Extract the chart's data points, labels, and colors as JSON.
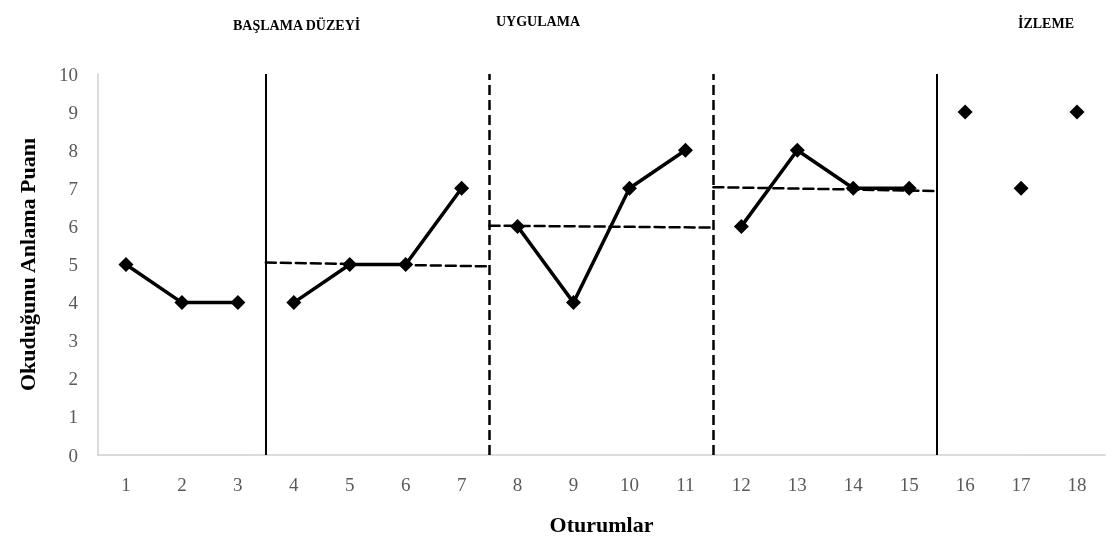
{
  "chart_data": {
    "type": "line",
    "xlabel": "Oturumlar",
    "ylabel": "Okuduğunu Anlama Puanı",
    "annotations": [
      "BAŞLAMA DÜZEYİ",
      "UYGULAMA",
      "İZLEME"
    ],
    "xlim": [
      0.5,
      18.5
    ],
    "xticks": [
      1,
      2,
      3,
      4,
      5,
      6,
      7,
      8,
      9,
      10,
      11,
      12,
      13,
      14,
      15,
      16,
      17,
      18
    ],
    "ylim": [
      0,
      10
    ],
    "yticks": [
      0,
      1,
      2,
      3,
      4,
      5,
      6,
      7,
      8,
      9,
      10
    ],
    "grid": false,
    "marker": "diamond",
    "line_style": "solid",
    "series": [
      {
        "color": "#000000",
        "x": [
          1,
          2,
          3
        ],
        "values": [
          5,
          4,
          4
        ]
      },
      {
        "color": "#000000",
        "x": [
          4,
          5,
          6,
          7
        ],
        "values": [
          4,
          5,
          5,
          7
        ]
      },
      {
        "color": "#000000",
        "x": [
          8,
          9,
          10,
          11
        ],
        "values": [
          6,
          4,
          7,
          8
        ]
      },
      {
        "color": "#000000",
        "x": [
          12,
          13,
          14,
          15
        ],
        "values": [
          6,
          8,
          7,
          7
        ]
      },
      {
        "type": "scatter",
        "color": "#000000",
        "x": [
          16,
          17,
          18
        ],
        "values": [
          9,
          7,
          9
        ]
      },
      {
        "color": "#000000",
        "x": [
          3.5,
          7.5
        ],
        "values": [
          5.05,
          4.95
        ],
        "marker": "none",
        "line_style": "dashed"
      },
      {
        "color": "#000000",
        "x": [
          7.5,
          11.5
        ],
        "values": [
          6.02,
          5.97
        ],
        "marker": "none",
        "line_style": "dashed"
      },
      {
        "color": "#000000",
        "x": [
          11.5,
          15.5
        ],
        "values": [
          7.03,
          6.93
        ],
        "marker": "none",
        "line_style": "dashed"
      }
    ],
    "ref_lines": [
      {
        "axis": "x",
        "value": 3.5,
        "line_style": "solid",
        "color": "#000000"
      },
      {
        "axis": "x",
        "value": 7.5,
        "line_style": "dashed",
        "color": "#000000"
      },
      {
        "axis": "x",
        "value": 11.5,
        "line_style": "dashed",
        "color": "#000000"
      },
      {
        "axis": "x",
        "value": 15.5,
        "line_style": "solid",
        "color": "#000000"
      }
    ]
  }
}
